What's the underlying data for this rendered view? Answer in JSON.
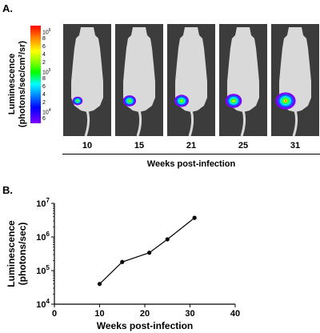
{
  "panel_a": {
    "label": "A.",
    "ylabel_line1": "Luminescence",
    "ylabel_line2": "(photons/sec/cm²/sr)",
    "colorbar": {
      "ticks": [
        {
          "base": "10",
          "exp": "6"
        },
        {
          "base": "",
          "exp": "",
          "text": "8"
        },
        {
          "base": "",
          "exp": "",
          "text": "6"
        },
        {
          "base": "",
          "exp": "",
          "text": "4"
        },
        {
          "base": "",
          "exp": "",
          "text": "2"
        },
        {
          "base": "10",
          "exp": "5"
        },
        {
          "base": "",
          "exp": "",
          "text": "8"
        },
        {
          "base": "",
          "exp": "",
          "text": "6"
        },
        {
          "base": "",
          "exp": "",
          "text": "4"
        },
        {
          "base": "",
          "exp": "",
          "text": "2"
        },
        {
          "base": "10",
          "exp": "4"
        },
        {
          "base": "",
          "exp": "",
          "text": "6"
        }
      ]
    },
    "weeks": [
      "10",
      "15",
      "21",
      "25",
      "31"
    ],
    "intensity": [
      0.25,
      0.45,
      0.55,
      0.7,
      0.95
    ],
    "xtitle": "Weeks post-infection",
    "colors": {
      "image_bg": "#3c3c3c",
      "mouse": "#d9d9d9"
    }
  },
  "panel_b": {
    "label": "B."
  },
  "chart_data": {
    "type": "line",
    "x": [
      10,
      15,
      21,
      25,
      31
    ],
    "values": [
      40000,
      180000,
      340000,
      850000,
      3700000
    ],
    "xlabel": "Weeks post-infection",
    "ylabel_line1": "Luminescence",
    "ylabel_line2": "(photons/sec)",
    "xlim": [
      0,
      40
    ],
    "ylim": [
      10000,
      10000000
    ],
    "yscale": "log",
    "x_ticks": [
      "0",
      "10",
      "20",
      "30",
      "40"
    ],
    "y_ticks": [
      {
        "base": "10",
        "exp": "4"
      },
      {
        "base": "10",
        "exp": "5"
      },
      {
        "base": "10",
        "exp": "6"
      },
      {
        "base": "10",
        "exp": "7"
      }
    ],
    "grid": false,
    "color": "#000000"
  }
}
